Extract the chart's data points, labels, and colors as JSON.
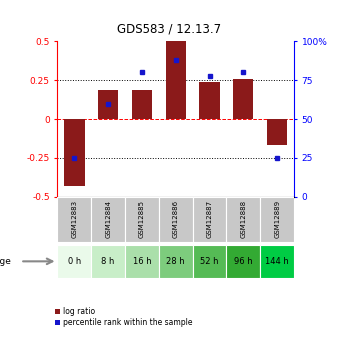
{
  "title": "GDS583 / 12.13.7",
  "samples": [
    "GSM12883",
    "GSM12884",
    "GSM12885",
    "GSM12886",
    "GSM12887",
    "GSM12888",
    "GSM12889"
  ],
  "ages": [
    "0 h",
    "8 h",
    "16 h",
    "28 h",
    "52 h",
    "96 h",
    "144 h"
  ],
  "log_ratios": [
    -0.43,
    0.19,
    0.19,
    0.5,
    0.24,
    0.26,
    -0.17
  ],
  "percentiles": [
    25,
    60,
    80,
    88,
    78,
    80,
    25
  ],
  "bar_color": "#8B1A1A",
  "dot_color": "#1515CC",
  "ylim": [
    -0.5,
    0.5
  ],
  "y2lim": [
    0,
    100
  ],
  "yticks": [
    -0.5,
    -0.25,
    0.0,
    0.25,
    0.5
  ],
  "y2ticks": [
    0,
    25,
    50,
    75,
    100
  ],
  "ytick_labels": [
    "-0.5",
    "-0.25",
    "0",
    "0.25",
    "0.5"
  ],
  "y2tick_labels": [
    "0",
    "25",
    "50",
    "75",
    "100%"
  ],
  "age_colors": [
    "#eafaea",
    "#c8eec8",
    "#aadfaa",
    "#7dcc7d",
    "#55bb55",
    "#33aa33",
    "#00cc44"
  ],
  "sample_color": "#c8c8c8",
  "background_color": "#ffffff",
  "legend_log_ratio": "log ratio",
  "legend_percentile": "percentile rank within the sample"
}
